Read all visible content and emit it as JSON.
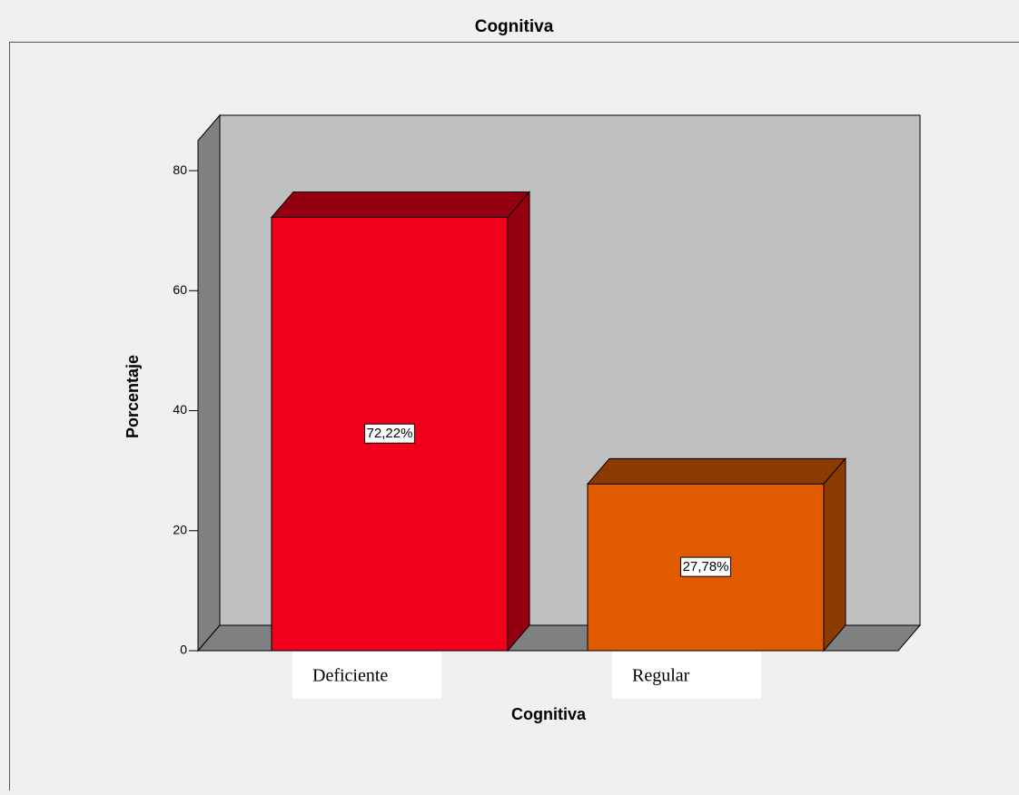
{
  "chart_data": {
    "type": "bar3d",
    "title": "Cognitiva",
    "x_label": "Cognitiva",
    "y_label": "Porcentaje",
    "categories": [
      "Deficiente",
      "Regular"
    ],
    "values": [
      72.22,
      27.78
    ],
    "value_labels": [
      "72,22%",
      "27,78%"
    ],
    "colors": [
      "#f0001a",
      "#e05a00"
    ],
    "side_colors": [
      "#950010",
      "#8b3a00"
    ],
    "ylim": [
      0,
      85
    ],
    "yticks": [
      0,
      20,
      40,
      60,
      80
    ]
  }
}
